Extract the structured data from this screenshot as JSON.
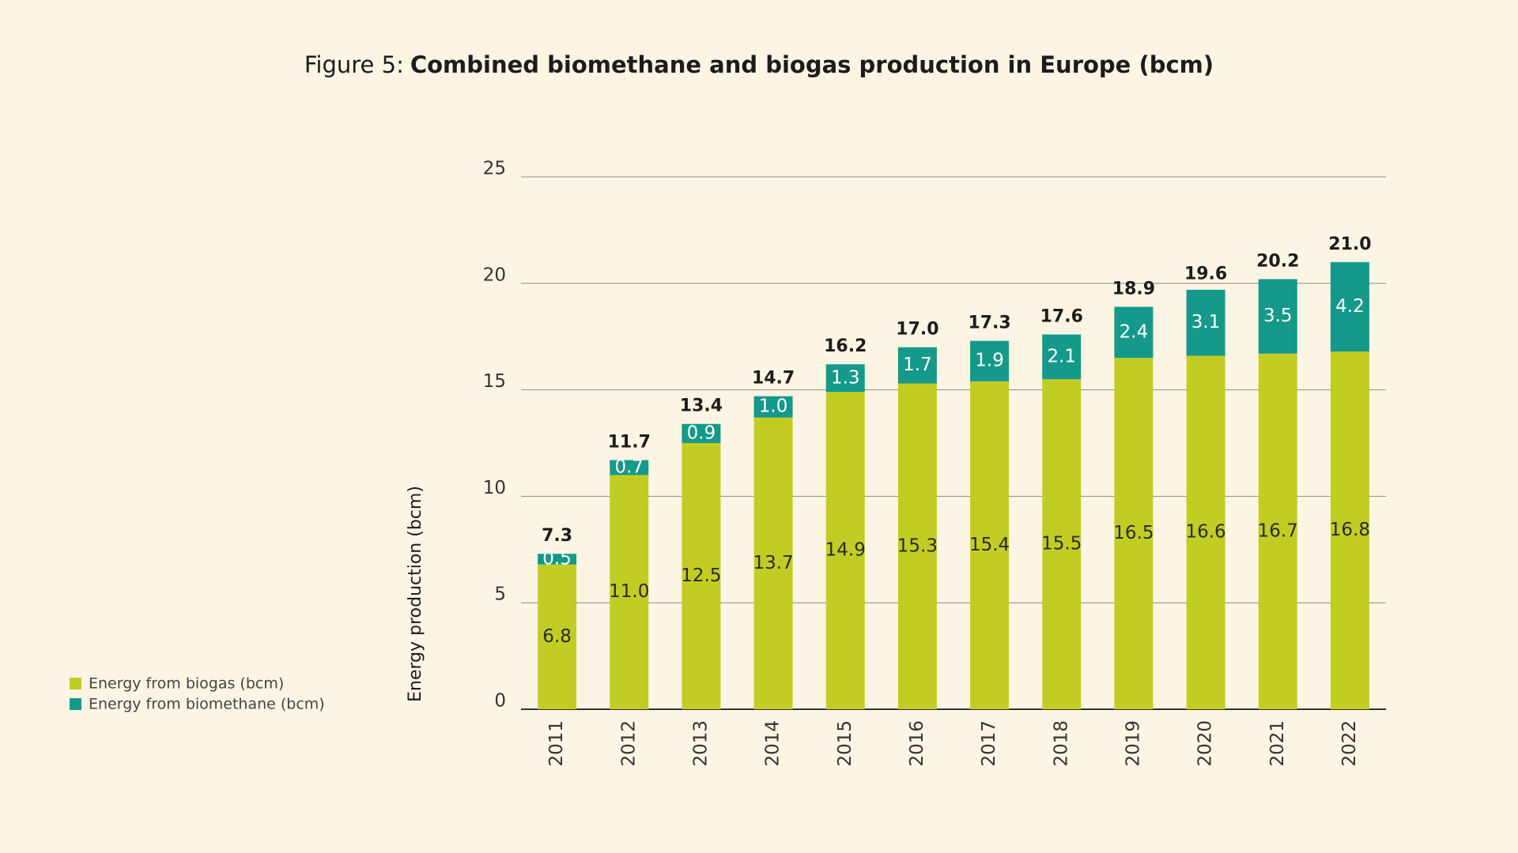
{
  "chart_data": {
    "type": "stacked-bar",
    "title_label": "Figure 5:",
    "title": "Combined biomethane and biogas production in Europe (bcm)",
    "y_label": "Energy production (bcm)",
    "categories": [
      "2011",
      "2012",
      "2013",
      "2014",
      "2015",
      "2016",
      "2017",
      "2018",
      "2019",
      "2020",
      "2021",
      "2022"
    ],
    "series": [
      {
        "name": "Energy from biogas (bcm)",
        "color": "#c2cd23",
        "values": [
          6.8,
          11.0,
          12.5,
          13.7,
          14.9,
          15.3,
          15.4,
          15.5,
          16.5,
          16.6,
          16.7,
          16.8
        ],
        "value_labels": [
          "6.8",
          "11.0",
          "12.5",
          "13.7",
          "14.9",
          "15.3",
          "15.4",
          "15.5",
          "16.5",
          "16.6",
          "16.7",
          "16.8"
        ]
      },
      {
        "name": "Energy from biomethane (bcm)",
        "color": "#14998a",
        "values": [
          0.5,
          0.7,
          0.9,
          1.0,
          1.3,
          1.7,
          1.9,
          2.1,
          2.4,
          3.1,
          3.5,
          4.2
        ],
        "value_labels": [
          "0.5",
          "0.7",
          "0.9",
          "1.0",
          "1.3",
          "1.7",
          "1.9",
          "2.1",
          "2.4",
          "3.1",
          "3.5",
          "4.2"
        ]
      }
    ],
    "totals": {
      "values": [
        7.3,
        11.7,
        13.4,
        14.7,
        16.2,
        17.0,
        17.3,
        17.6,
        18.9,
        19.6,
        20.2,
        21.0
      ],
      "value_labels": [
        "7.3",
        "11.7",
        "13.4",
        "14.7",
        "16.2",
        "17.0",
        "17.3",
        "17.6",
        "18.9",
        "19.6",
        "20.2",
        "21.0"
      ]
    },
    "ylim": [
      0,
      25
    ],
    "yticks": [
      0,
      5,
      10,
      15,
      20,
      25
    ],
    "grid": true
  }
}
